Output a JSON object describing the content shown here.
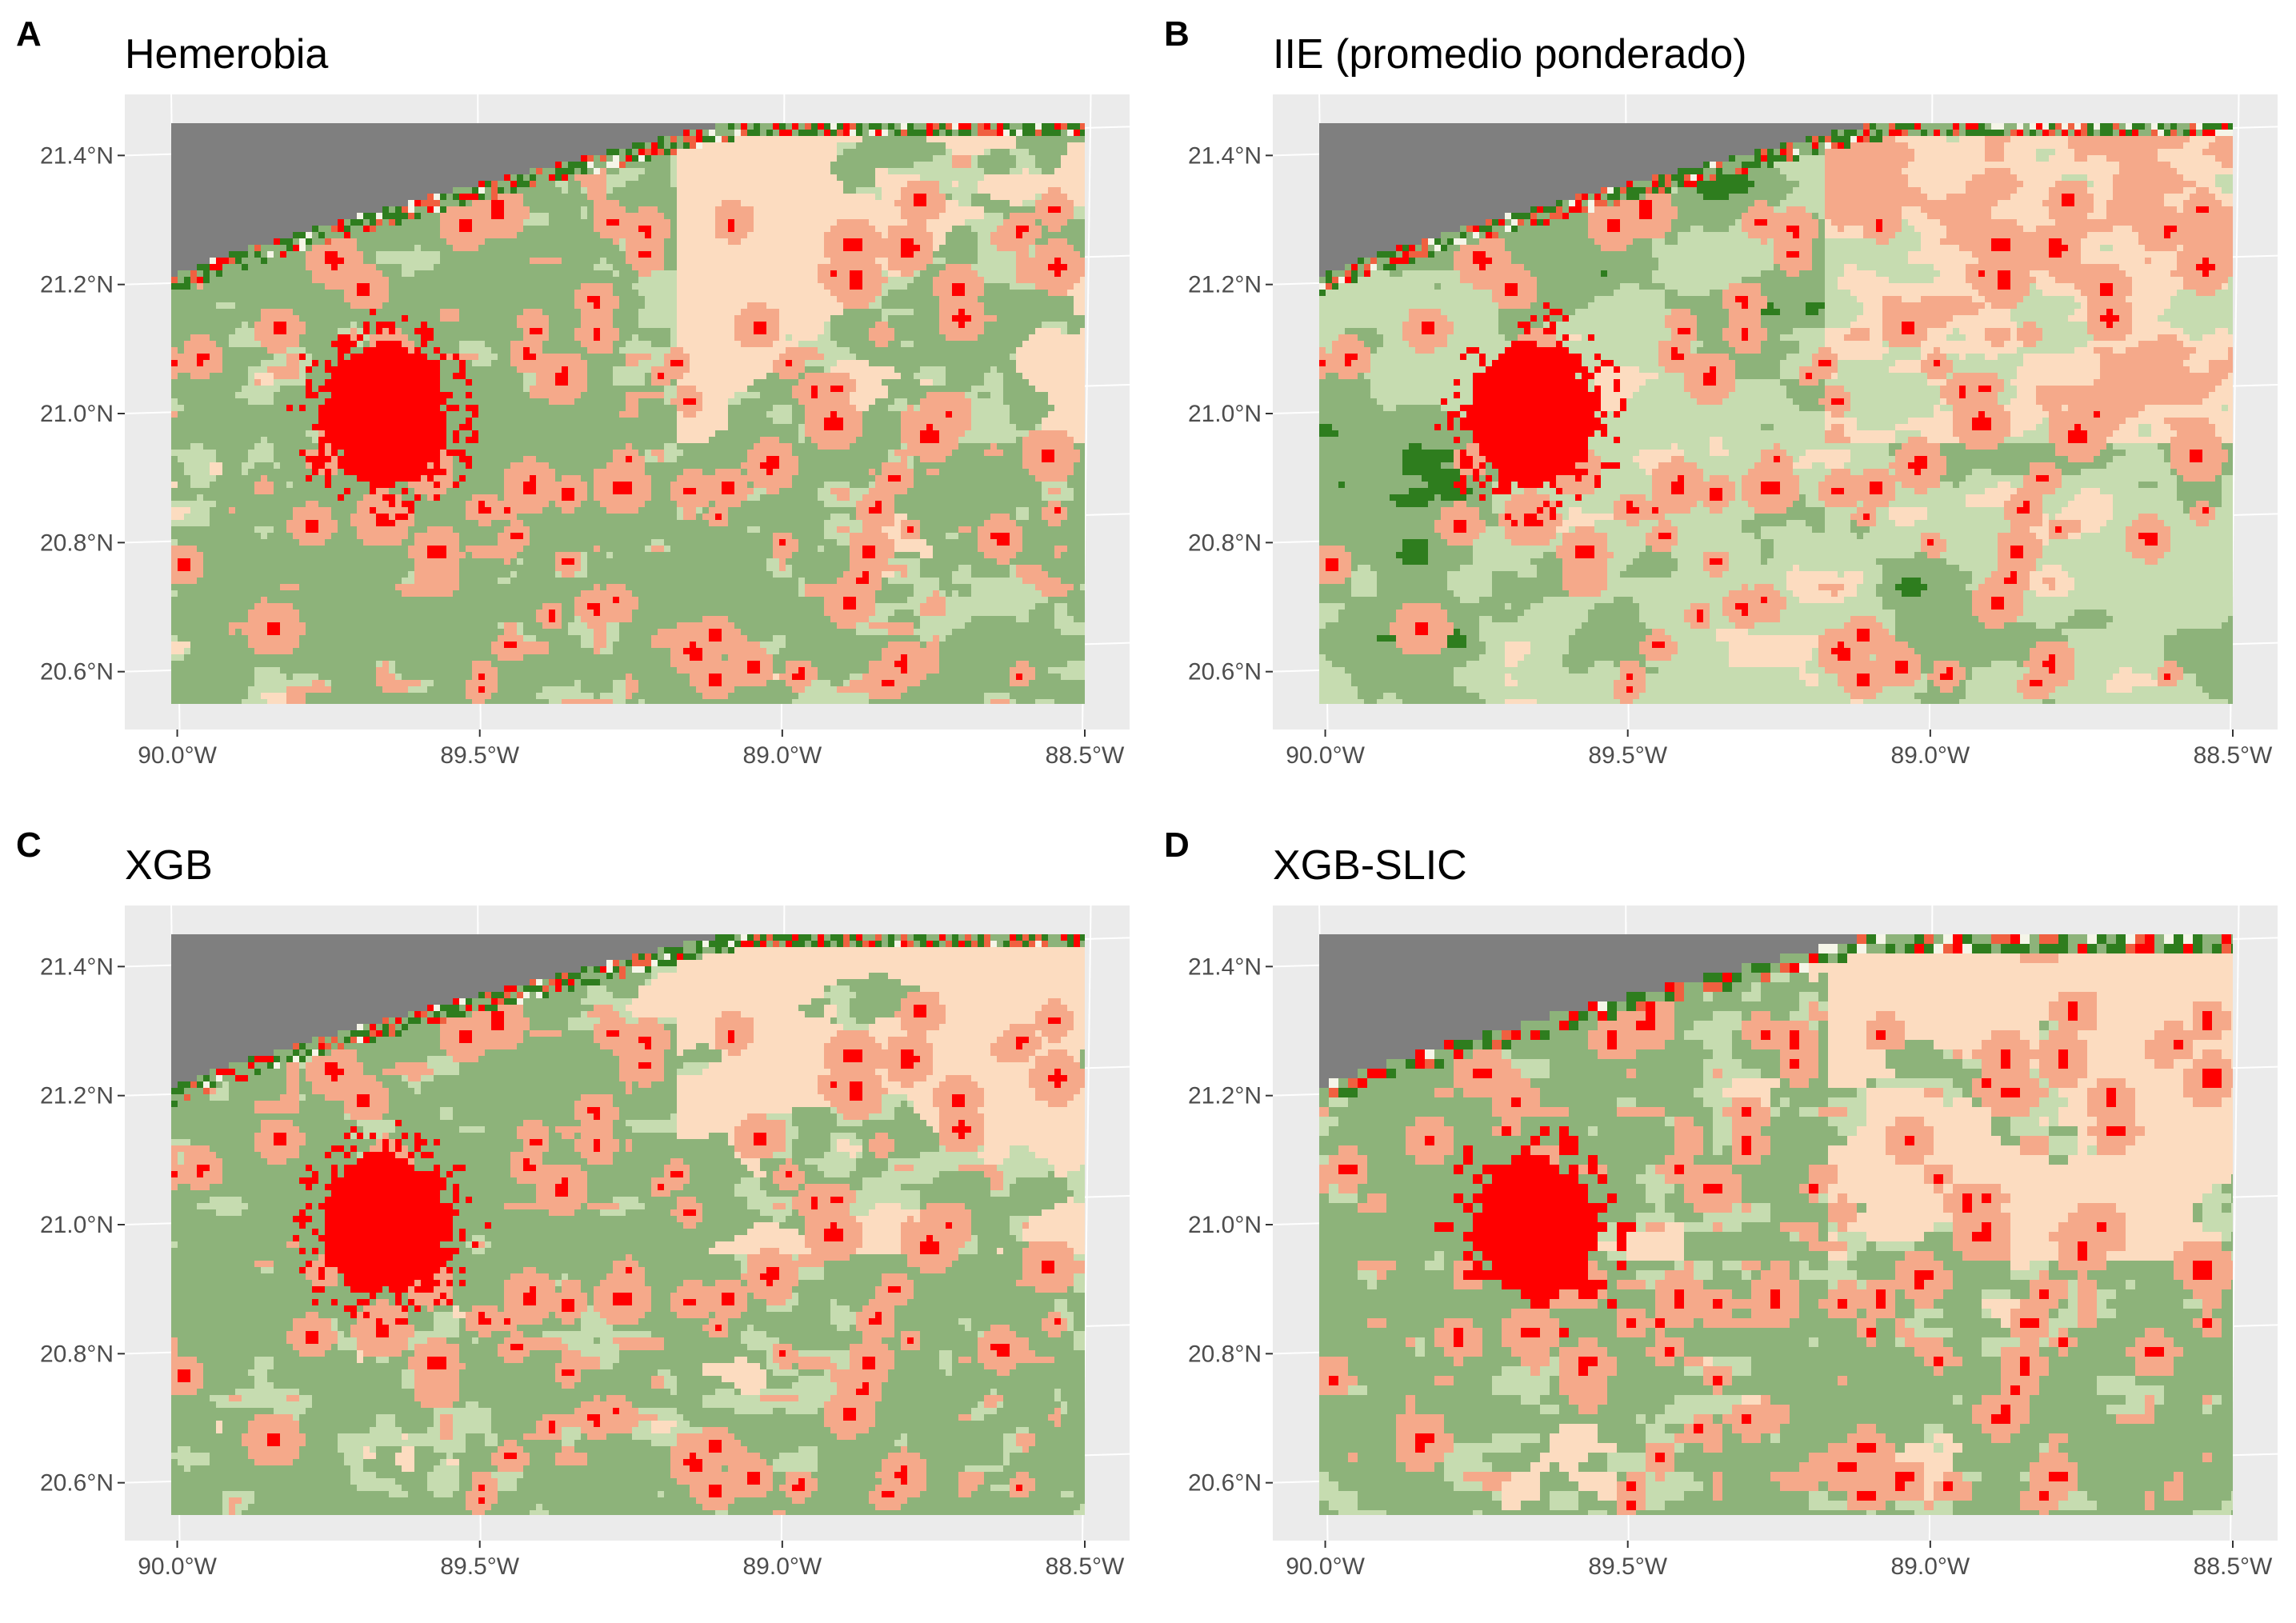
{
  "figure": {
    "panels": [
      {
        "letter": "A",
        "title": "Hemerobia",
        "style": "classes"
      },
      {
        "letter": "B",
        "title": "IIE (promedio ponderado)",
        "style": "continuous"
      },
      {
        "letter": "C",
        "title": "XGB",
        "style": "classes"
      },
      {
        "letter": "D",
        "title": "XGB-SLIC",
        "style": "blocky"
      }
    ],
    "lat_ticks": [
      "21.4°N",
      "21.2°N",
      "21.0°N",
      "20.8°N",
      "20.6°N"
    ],
    "lon_ticks": [
      "90.0°W",
      "89.5°W",
      "89.0°W",
      "88.5°W"
    ],
    "lat_values": [
      21.4,
      21.2,
      21.0,
      20.8,
      20.6
    ],
    "lon_values": [
      -90.0,
      -89.5,
      -89.0,
      -88.5
    ],
    "extent": {
      "lat_min": 20.55,
      "lat_max": 21.45,
      "lon_min": -90.01,
      "lon_max": -88.5
    },
    "colors": {
      "panel_bg": "#ebebeb",
      "grid": "#ffffff",
      "sea": "#7f7f7f",
      "dark_green": "#2e7d1e",
      "mid_green": "#8db37a",
      "light_green": "#c6dcb0",
      "peach": "#fcdcc0",
      "salmon": "#f5a98a",
      "orange_red": "#f06040",
      "red": "#ff0000",
      "white": "#f5f5e8"
    }
  }
}
